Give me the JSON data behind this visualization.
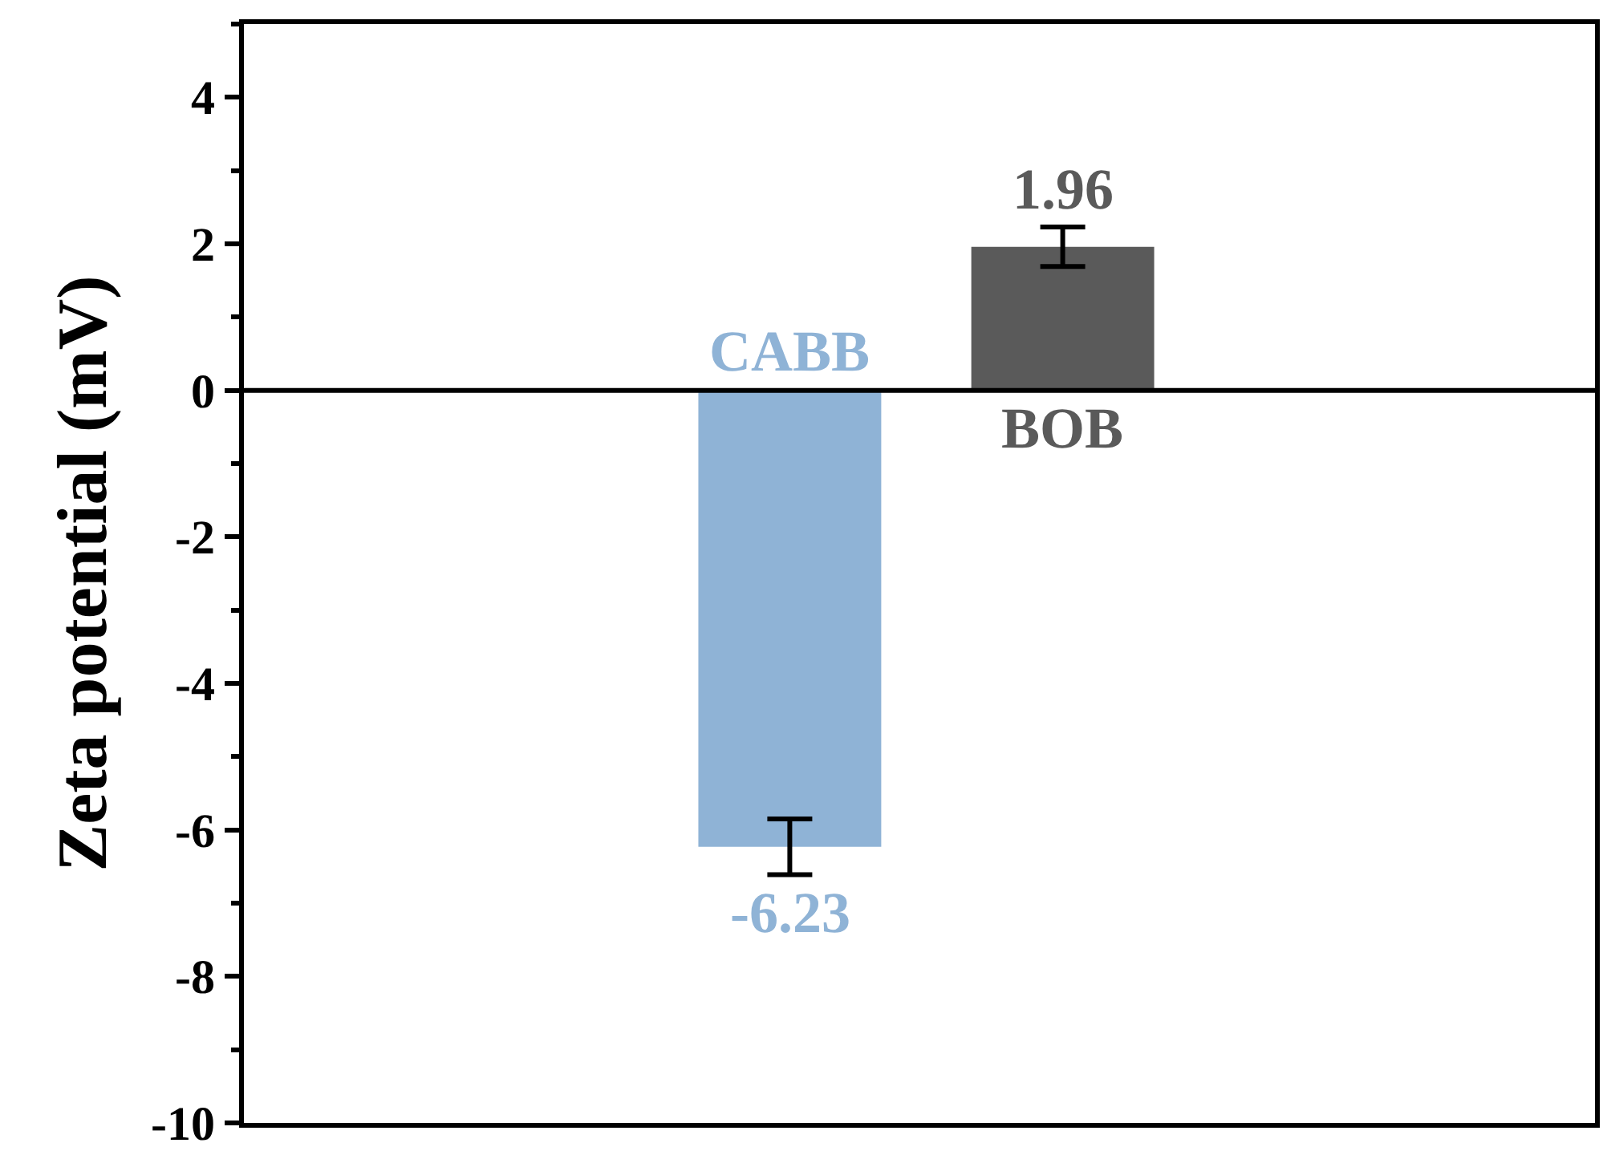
{
  "chart_data": {
    "type": "bar",
    "ylabel": "Zeta potential (mV)",
    "categories": [
      "CABB",
      "BOB"
    ],
    "values": [
      -6.23,
      1.96
    ],
    "colors": [
      "#8fb3d6",
      "#5a5a5a"
    ],
    "errors": [
      0.38,
      0.27
    ],
    "data_labels": true,
    "ylim": [
      -10,
      5
    ],
    "yticks": [
      -10,
      -8,
      -6,
      -4,
      -2,
      0,
      2,
      4
    ],
    "ref_lines": [
      {
        "axis": "y",
        "value": 0,
        "color": "#000000"
      }
    ],
    "tick_labels": "y",
    "legend": false
  }
}
